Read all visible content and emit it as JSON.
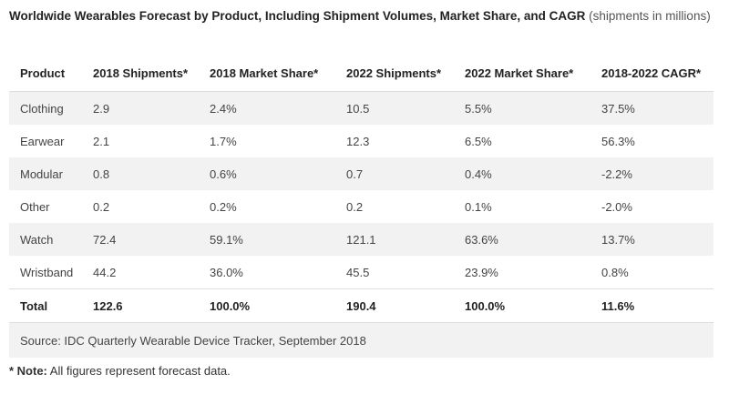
{
  "chart_data": {
    "type": "table",
    "title": "Worldwide Wearables Forecast by Product, Including Shipment Volumes, Market Share, and CAGR",
    "subtitle": "(shipments in millions)",
    "columns": [
      "Product",
      "2018 Shipments*",
      "2018 Market Share*",
      "2022 Shipments*",
      "2022 Market Share*",
      "2018-2022 CAGR*"
    ],
    "rows": [
      [
        "Clothing",
        "2.9",
        "2.4%",
        "10.5",
        "5.5%",
        "37.5%"
      ],
      [
        "Earwear",
        "2.1",
        "1.7%",
        "12.3",
        "6.5%",
        "56.3%"
      ],
      [
        "Modular",
        "0.8",
        "0.6%",
        "0.7",
        "0.4%",
        "-2.2%"
      ],
      [
        "Other",
        "0.2",
        "0.2%",
        "0.2",
        "0.1%",
        "-2.0%"
      ],
      [
        "Watch",
        "72.4",
        "59.1%",
        "121.1",
        "63.6%",
        "13.7%"
      ],
      [
        "Wristband",
        "44.2",
        "36.0%",
        "45.5",
        "23.9%",
        "0.8%"
      ]
    ],
    "total": [
      "Total",
      "122.6",
      "100.0%",
      "190.4",
      "100.0%",
      "11.6%"
    ],
    "source": "Source: IDC Quarterly Wearable Device Tracker, September 2018",
    "note_label": "* Note:",
    "note_text": " All figures represent forecast data."
  },
  "colors": {
    "stripe": "#f2f2f2",
    "text": "#222222"
  }
}
